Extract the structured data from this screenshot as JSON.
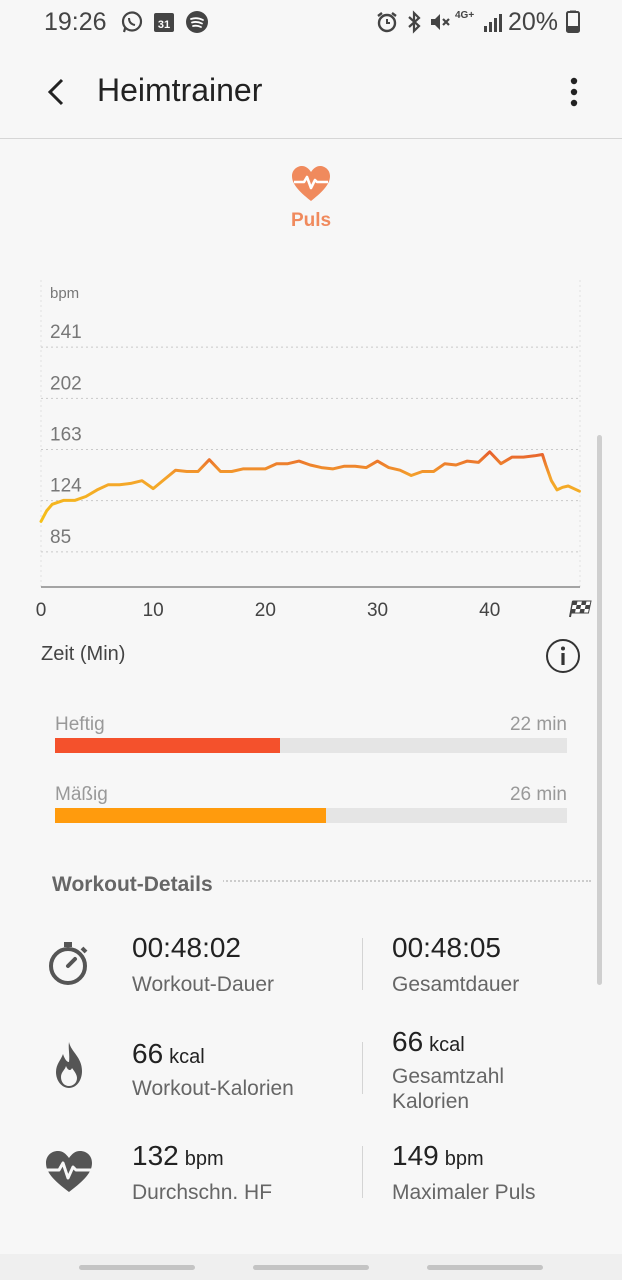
{
  "status_bar": {
    "time": "19:26",
    "battery": "20%",
    "calendar_day": "31",
    "network": "4G+"
  },
  "app_bar": {
    "title": "Heimtrainer"
  },
  "metric": {
    "label": "Puls",
    "accent_color": "#f08a5d"
  },
  "chart_data": {
    "type": "line",
    "unit_label": "bpm",
    "y_ticks": [
      85,
      124,
      163,
      202,
      241
    ],
    "x_ticks": [
      0,
      10,
      20,
      30,
      40
    ],
    "ylim": [
      46,
      280
    ],
    "xlim": [
      0,
      48.05
    ],
    "grid": true,
    "x_end_icon": "checkered-flag-icon",
    "series": [
      {
        "x": [
          0,
          0.5,
          1,
          2,
          3,
          4,
          5,
          6,
          7,
          8,
          9,
          10,
          11,
          12,
          13,
          14,
          15,
          16,
          17,
          18,
          19,
          20,
          21,
          22,
          23,
          24,
          25,
          26,
          27,
          28,
          29,
          30,
          31,
          32,
          33,
          34,
          35,
          36,
          37,
          38,
          39,
          40,
          41,
          42,
          43,
          44,
          44.7,
          45,
          45.5,
          46,
          46.5,
          47,
          48
        ],
        "y": [
          96,
          104,
          109,
          112,
          112,
          115,
          120,
          124,
          124,
          125,
          127,
          121,
          128,
          135,
          134,
          134,
          143,
          134,
          134,
          136,
          136,
          136,
          140,
          140,
          142,
          139,
          137,
          136,
          138,
          138,
          137,
          142,
          137,
          135,
          131,
          134,
          134,
          140,
          139,
          142,
          141,
          149,
          140,
          145,
          145,
          146,
          147,
          139,
          127,
          120,
          122,
          123,
          119
        ]
      }
    ],
    "xlabel": "Zeit (Min)"
  },
  "zones": [
    {
      "name": "Heftig",
      "duration": "22 min",
      "fraction": 0.44,
      "color": "#f4512c"
    },
    {
      "name": "Mäßig",
      "duration": "26 min",
      "fraction": 0.53,
      "color": "#ff9b0d"
    }
  ],
  "workout_details": {
    "title": "Workout-Details",
    "rows": [
      {
        "icon": "stopwatch-icon",
        "left": {
          "value": "00:48:02",
          "unit": "",
          "label": "Workout-Dauer"
        },
        "right": {
          "value": "00:48:05",
          "unit": "",
          "label": "Gesamtdauer"
        }
      },
      {
        "icon": "flame-icon",
        "left": {
          "value": "66",
          "unit": "kcal",
          "label": "Workout-Kalorien"
        },
        "right": {
          "value": "66",
          "unit": "kcal",
          "label": "Gesamtzahl Kalorien"
        }
      },
      {
        "icon": "heart-rate-icon",
        "left": {
          "value": "132",
          "unit": "bpm",
          "label": "Durchschn. HF"
        },
        "right": {
          "value": "149",
          "unit": "bpm",
          "label": "Maximaler Puls"
        }
      }
    ]
  }
}
